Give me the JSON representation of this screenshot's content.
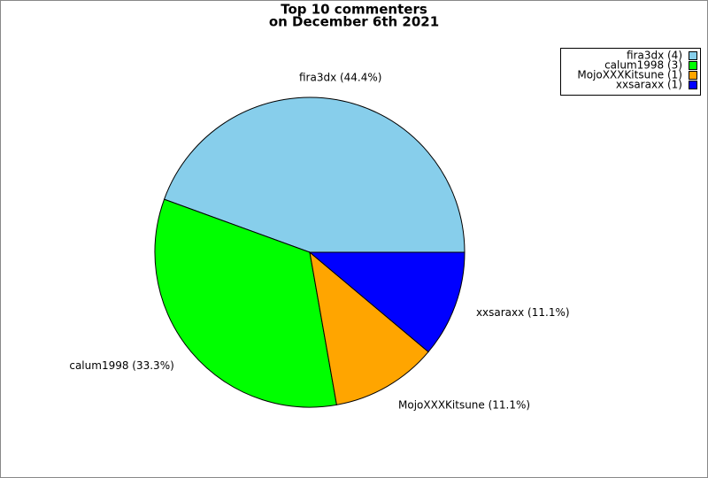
{
  "chart_data": {
    "type": "pie",
    "title": [
      "Top 10 commenters",
      "on December 6th 2021"
    ],
    "values": [
      44.4,
      33.3,
      11.1,
      11.1
    ],
    "value_labels": [
      "fira3dx (44.4%)",
      "calum1998 (33.3%)",
      "MojoXXXKitsune (11.1%)",
      "xxsaraxx (11.1%)"
    ],
    "legend_labels": [
      "fira3dx (4)",
      "calum1998 (3)",
      "MojoXXXKitsune (1)",
      "xxsaraxx (1)"
    ],
    "colors": [
      "#87ceeb",
      "#00ff00",
      "#ffa500",
      "#0000ff"
    ],
    "legend": "upper right"
  }
}
